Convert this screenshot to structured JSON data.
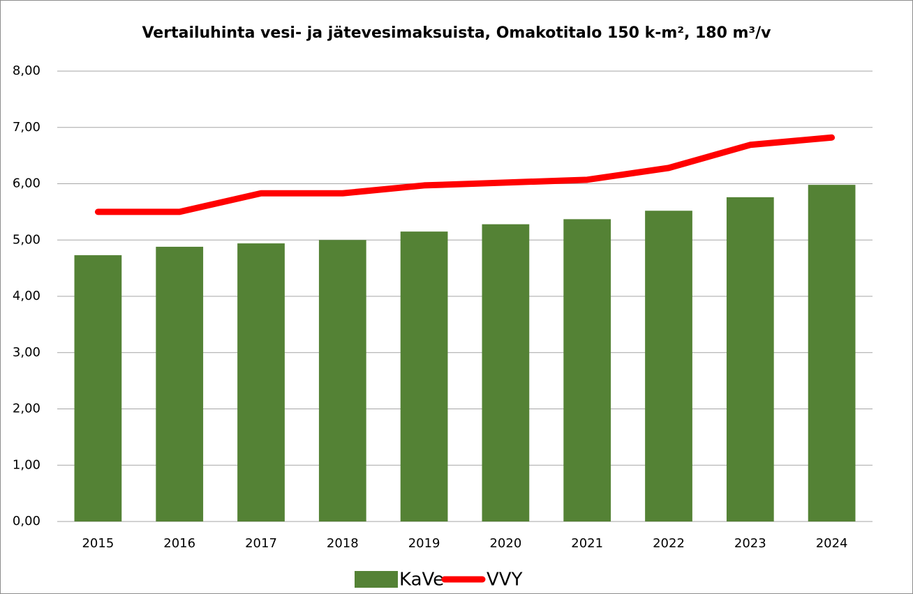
{
  "chart_data": {
    "type": "combo",
    "title": "Vertailuhinta vesi- ja jätevesimaksuista, Omakotitalo 150 k-m², 180 m³/v",
    "categories": [
      "2015",
      "2016",
      "2017",
      "2018",
      "2019",
      "2020",
      "2021",
      "2022",
      "2023",
      "2024"
    ],
    "series": [
      {
        "name": "KaVe",
        "type": "bar",
        "color": "#548235",
        "values": [
          4.73,
          4.88,
          4.94,
          5.0,
          5.15,
          5.28,
          5.37,
          5.52,
          5.76,
          5.98
        ]
      },
      {
        "name": "VVY",
        "type": "line",
        "color": "#ff0000",
        "values": [
          5.5,
          5.5,
          5.83,
          5.83,
          5.97,
          6.02,
          6.07,
          6.28,
          6.69,
          6.82
        ]
      }
    ],
    "ylim": [
      0,
      8
    ],
    "yticks": [
      {
        "value": 0,
        "label": "0,00"
      },
      {
        "value": 1,
        "label": "1,00"
      },
      {
        "value": 2,
        "label": "2,00"
      },
      {
        "value": 3,
        "label": "3,00"
      },
      {
        "value": 4,
        "label": "4,00"
      },
      {
        "value": 5,
        "label": "5,00"
      },
      {
        "value": 6,
        "label": "6,00"
      },
      {
        "value": 7,
        "label": "7,00"
      },
      {
        "value": 8,
        "label": "8,00"
      }
    ],
    "grid": true,
    "legend": "bottom"
  }
}
